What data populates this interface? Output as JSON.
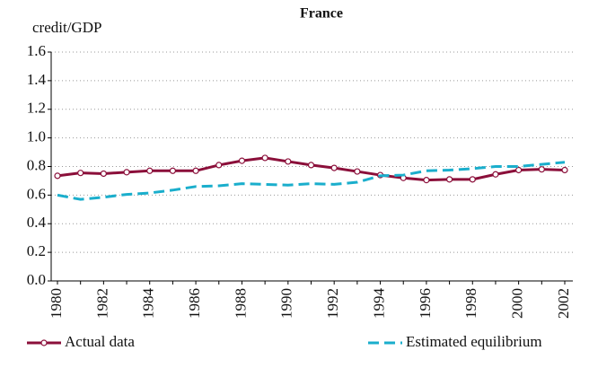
{
  "chart_data": {
    "type": "line",
    "title": "France",
    "y_label": "credit/GDP",
    "x": [
      1980,
      1981,
      1982,
      1983,
      1984,
      1985,
      1986,
      1987,
      1988,
      1989,
      1990,
      1991,
      1992,
      1993,
      1994,
      1995,
      1996,
      1997,
      1998,
      1999,
      2000,
      2001,
      2002
    ],
    "series": [
      {
        "name": "Actual data",
        "color": "#8b0f3a",
        "marker": "circle",
        "values": [
          0.735,
          0.755,
          0.75,
          0.76,
          0.77,
          0.77,
          0.77,
          0.81,
          0.84,
          0.86,
          0.835,
          0.81,
          0.79,
          0.765,
          0.74,
          0.72,
          0.705,
          0.71,
          0.71,
          0.745,
          0.775,
          0.78,
          0.775
        ]
      },
      {
        "name": "Estimated equilibrium",
        "color": "#1aaecc",
        "style": "dashed",
        "values": [
          0.6,
          0.57,
          0.585,
          0.605,
          0.615,
          0.635,
          0.66,
          0.665,
          0.68,
          0.675,
          0.67,
          0.68,
          0.675,
          0.69,
          0.735,
          0.74,
          0.77,
          0.775,
          0.785,
          0.8,
          0.8,
          0.815,
          0.83
        ]
      }
    ],
    "xlim": [
      1980,
      2002
    ],
    "xticks": [
      1980,
      1982,
      1984,
      1986,
      1988,
      1990,
      1992,
      1994,
      1996,
      1998,
      2000,
      2002
    ],
    "ylim": [
      0,
      1.6
    ],
    "yticks": [
      {
        "value": 0,
        "label": "0.0"
      },
      0.2,
      0.4,
      0.6,
      0.8,
      {
        "value": 1,
        "label": "1.0"
      },
      1.2,
      1.4,
      1.6
    ],
    "grid": true,
    "legend": "bottom"
  }
}
